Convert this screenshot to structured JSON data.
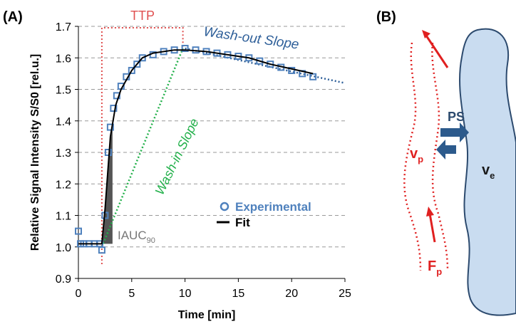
{
  "chart_data": {
    "type": "scatter",
    "panel_label": "(A)",
    "x_label": "Time [min]",
    "y_label": "Relative Signal Intensity S/S0  [rel.u.]",
    "xlim": [
      0,
      25
    ],
    "xticks": [
      0,
      5,
      10,
      15,
      20,
      25
    ],
    "ylim": [
      0.9,
      1.7
    ],
    "yticks": [
      0.9,
      {
        "value": 1,
        "label": "1.0"
      },
      1.1,
      1.2,
      1.3,
      1.4,
      1.5,
      1.6,
      1.7
    ],
    "grid": true,
    "annotations": {
      "ttp": "TTP",
      "wash_out": "Wash-out Slope",
      "wash_in": "Wash-in Slope",
      "iauc": {
        "text": "IAUC",
        "subscript": "90"
      }
    },
    "series": [
      {
        "name": "Experimental",
        "color": "#4f81bd",
        "x": [
          0,
          0.2,
          0.5,
          1,
          1.5,
          2,
          2.2,
          2.5,
          2.8,
          3,
          3.3,
          3.6,
          4,
          4.5,
          5,
          5.5,
          6,
          7,
          8,
          9,
          10,
          11,
          12,
          13,
          14,
          15,
          16,
          17,
          18,
          19,
          20,
          21,
          22
        ],
        "values": [
          1.05,
          1.01,
          1.01,
          1.01,
          1.01,
          1.01,
          0.99,
          1.1,
          1.3,
          1.38,
          1.44,
          1.48,
          1.51,
          1.54,
          1.56,
          1.58,
          1.6,
          1.61,
          1.62,
          1.625,
          1.63,
          1.625,
          1.62,
          1.615,
          1.61,
          1.605,
          1.6,
          1.59,
          1.58,
          1.57,
          1.56,
          1.55,
          1.54
        ]
      },
      {
        "name": "Fit",
        "color": "#000000",
        "x": [
          0,
          2.2,
          2.5,
          3,
          3.5,
          4,
          5,
          6,
          7,
          8,
          9,
          10,
          12,
          14,
          16,
          18,
          20,
          22
        ],
        "values": [
          1.01,
          1.01,
          1.12,
          1.35,
          1.45,
          1.5,
          1.56,
          1.6,
          1.615,
          1.62,
          1.625,
          1.625,
          1.62,
          1.61,
          1.6,
          1.58,
          1.565,
          1.55
        ]
      }
    ]
  },
  "panel_b": {
    "label": "(B)",
    "ps": "PS",
    "vp": {
      "text": "v",
      "subscript": "p"
    },
    "ve": {
      "text": "v",
      "subscript": "e"
    },
    "fp": {
      "text": "F",
      "subscript": "p"
    }
  }
}
